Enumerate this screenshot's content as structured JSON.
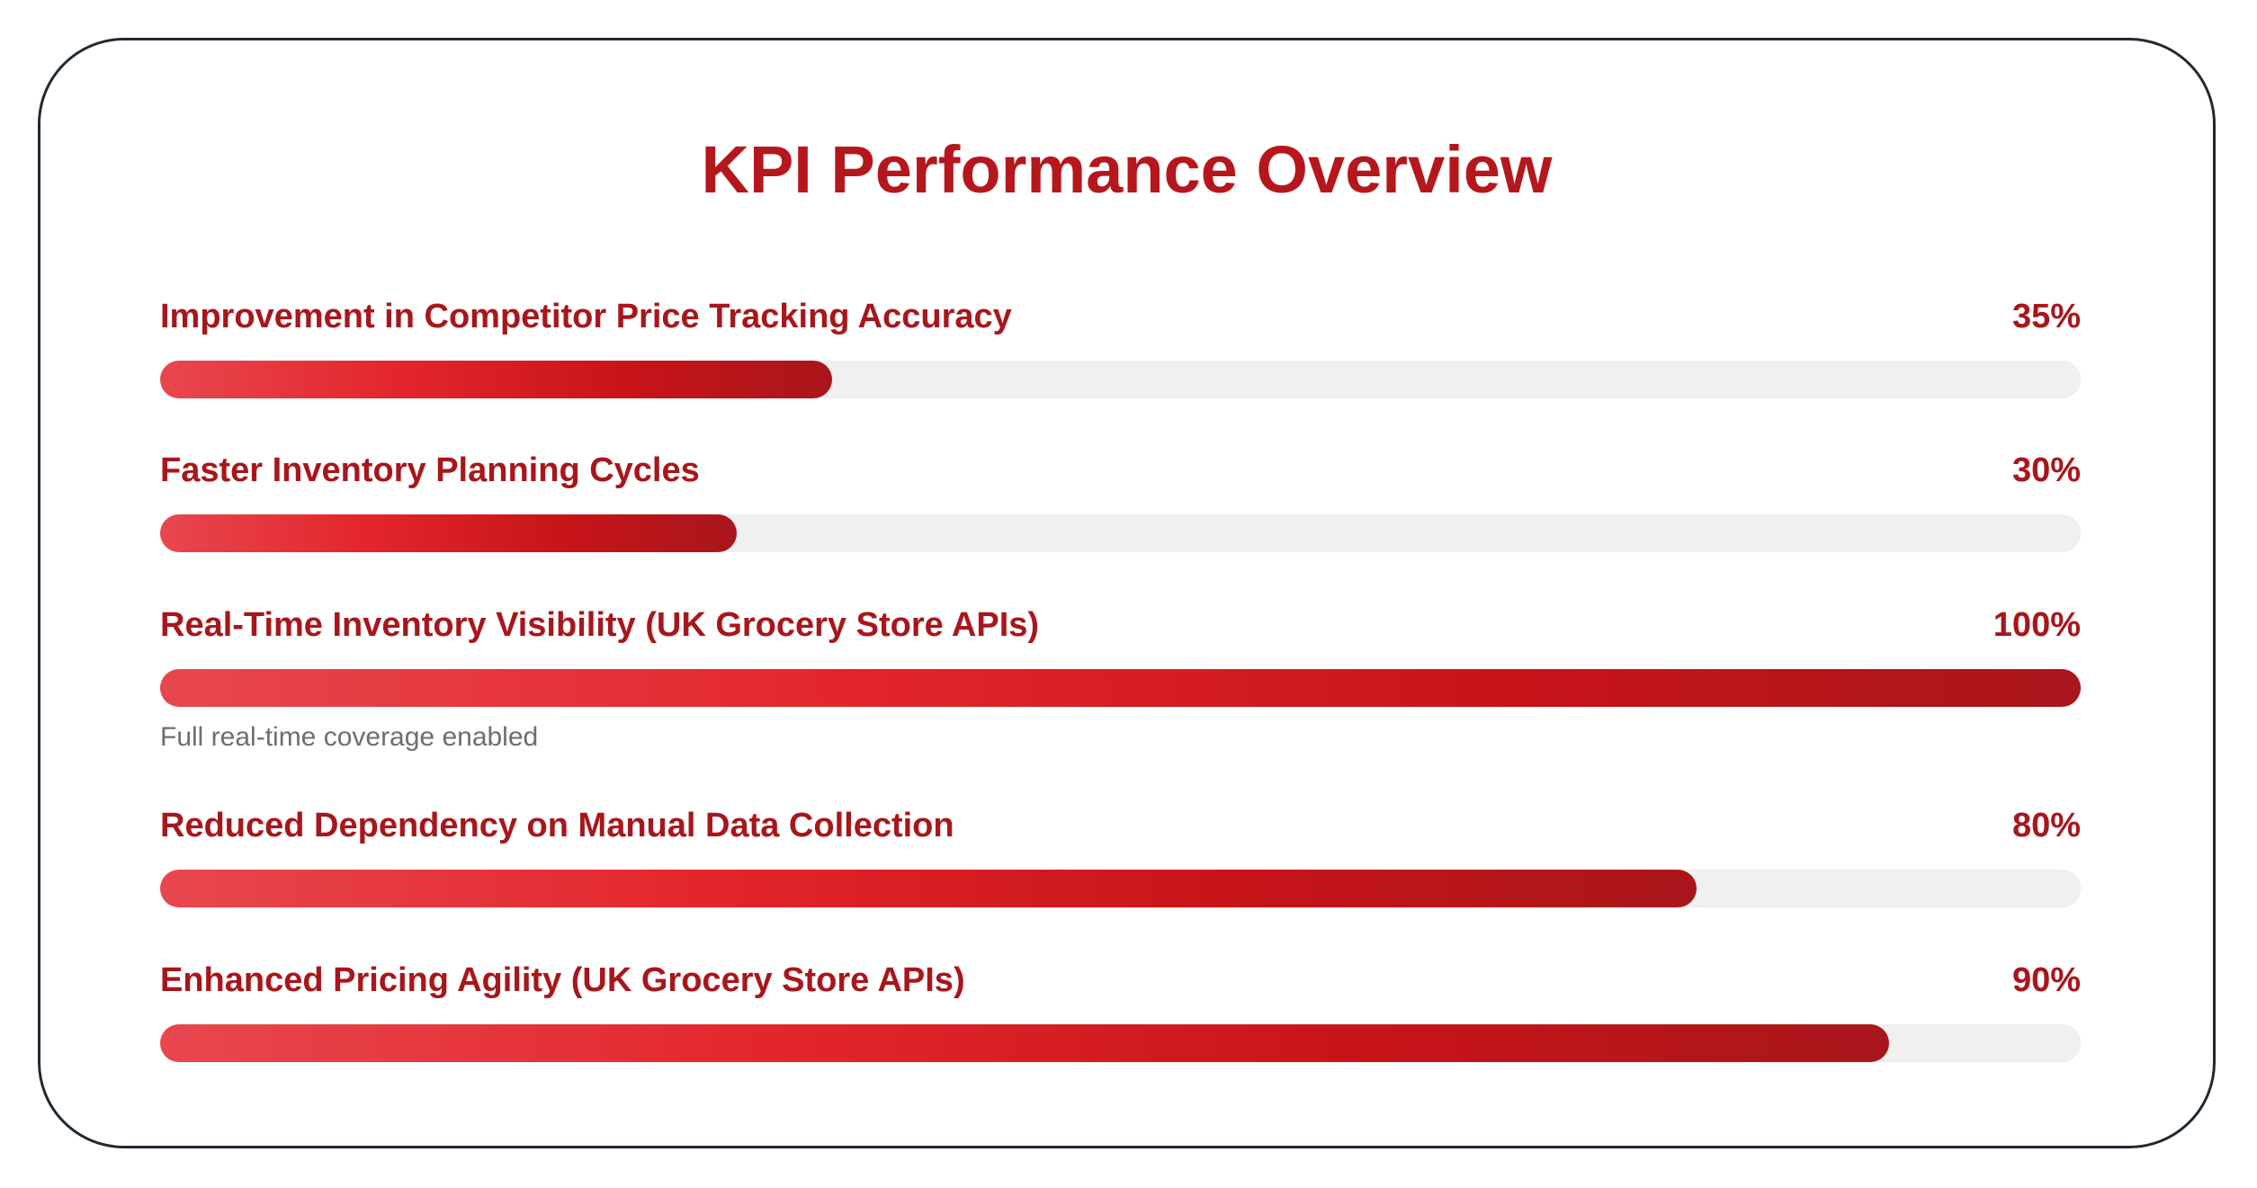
{
  "chart_data": {
    "type": "bar",
    "orientation": "horizontal",
    "title": "KPI Performance Overview",
    "unit": "%",
    "xlim": [
      0,
      100
    ],
    "categories": [
      "Improvement in Competitor Price Tracking Accuracy",
      "Faster Inventory Planning Cycles",
      "Real-Time Inventory Visibility (UK Grocery Store APIs)",
      "Reduced Dependency on Manual Data Collection",
      "Enhanced Pricing Agility (UK Grocery Store APIs)"
    ],
    "values": [
      35,
      30,
      100,
      80,
      90
    ],
    "value_labels": [
      "35%",
      "30%",
      "100%",
      "80%",
      "90%"
    ],
    "annotations": [
      {
        "category": "Real-Time Inventory Visibility (UK Grocery Store APIs)",
        "text": "Full real-time coverage enabled"
      }
    ],
    "colors": {
      "title": "#b5171c",
      "label": "#a8161b",
      "bar_start": "#e8474f",
      "bar_end": "#a8161b",
      "track": "#f0f0f0",
      "note": "#6e6e6e"
    }
  }
}
